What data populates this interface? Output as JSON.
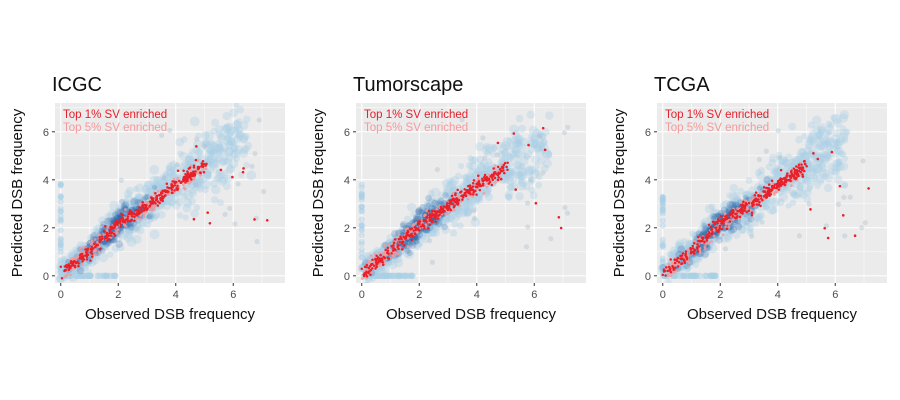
{
  "colors": {
    "panel_background": "#ebebeb",
    "gridline": "#ffffff",
    "density_light": "#a9cfe6",
    "density_dark": "#2a63a8",
    "top1": "#e8202a",
    "top5": "#f39a9c"
  },
  "chart_data": [
    {
      "type": "scatter",
      "title": "ICGC",
      "xlabel": "Observed DSB frequency",
      "ylabel": "Predicted DSB frequency",
      "xlim": [
        -0.2,
        7.8
      ],
      "ylim": [
        -0.3,
        7.2
      ],
      "xticks": [
        "0",
        "2",
        "4",
        "6"
      ],
      "yticks": [
        "0",
        "2",
        "4",
        "6"
      ],
      "grid": true,
      "legend_position": "top-left",
      "series": [
        {
          "name": "Top 1% SV enriched",
          "color": "#e8202a",
          "trend": {
            "x": [
              0.0,
              1.0,
              2.0,
              3.0,
              4.0,
              5.0
            ],
            "y": [
              0.1,
              1.0,
              2.2,
              2.9,
              3.8,
              4.6
            ]
          }
        },
        {
          "name": "Top 5% SV enriched",
          "color": "#f39a9c",
          "trend": {
            "x": [
              0.0,
              1.0,
              2.0,
              3.0,
              4.0,
              5.0
            ],
            "y": [
              0.1,
              1.0,
              2.1,
              2.9,
              3.7,
              4.5
            ]
          }
        }
      ]
    },
    {
      "type": "scatter",
      "title": "Tumorscape",
      "xlabel": "Observed DSB frequency",
      "ylabel": "Predicted DSB frequency",
      "xlim": [
        -0.2,
        7.8
      ],
      "ylim": [
        -0.3,
        7.2
      ],
      "xticks": [
        "0",
        "2",
        "4",
        "6"
      ],
      "yticks": [
        "0",
        "2",
        "4",
        "6"
      ],
      "grid": true,
      "legend_position": "top-left",
      "series": [
        {
          "name": "Top 1% SV enriched",
          "color": "#e8202a",
          "trend": {
            "x": [
              0.0,
              1.0,
              2.0,
              3.0,
              4.0,
              5.0
            ],
            "y": [
              0.1,
              1.0,
              2.1,
              2.9,
              3.8,
              4.5
            ]
          }
        },
        {
          "name": "Top 5% SV enriched",
          "color": "#f39a9c",
          "trend": {
            "x": [
              0.0,
              1.0,
              2.0,
              3.0,
              4.0,
              5.0
            ],
            "y": [
              0.1,
              1.0,
              2.1,
              2.9,
              3.7,
              4.5
            ]
          }
        }
      ]
    },
    {
      "type": "scatter",
      "title": "TCGA",
      "xlabel": "Observed DSB frequency",
      "ylabel": "Predicted DSB frequency",
      "xlim": [
        -0.2,
        7.8
      ],
      "ylim": [
        -0.3,
        7.2
      ],
      "xticks": [
        "0",
        "2",
        "4",
        "6"
      ],
      "yticks": [
        "0",
        "2",
        "4",
        "6"
      ],
      "grid": true,
      "legend_position": "top-left",
      "series": [
        {
          "name": "Top 1% SV enriched",
          "color": "#e8202a",
          "trend": {
            "x": [
              0.0,
              1.0,
              2.0,
              3.0,
              4.0,
              5.0
            ],
            "y": [
              0.1,
              1.0,
              2.2,
              2.9,
              3.8,
              4.6
            ]
          }
        },
        {
          "name": "Top 5% SV enriched",
          "color": "#f39a9c",
          "trend": {
            "x": [
              0.0,
              1.0,
              2.0,
              3.0,
              4.0,
              5.0
            ],
            "y": [
              0.1,
              1.0,
              2.1,
              2.9,
              3.7,
              4.5
            ]
          }
        }
      ]
    }
  ]
}
